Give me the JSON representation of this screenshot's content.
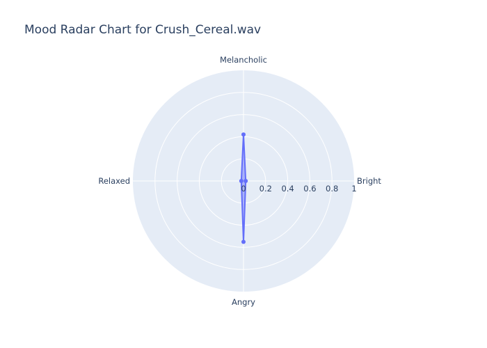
{
  "chart_data": {
    "type": "radar",
    "title": "Mood Radar Chart for Crush_Cereal.wav",
    "axes": [
      "Melancholic",
      "Bright",
      "Angry",
      "Relaxed"
    ],
    "radial_range": [
      0,
      1
    ],
    "radial_ticks": [
      "0",
      "0.2",
      "0.4",
      "0.6",
      "0.8",
      "1"
    ],
    "series": [
      {
        "values": [
          0.42,
          0.02,
          0.55,
          0.02
        ],
        "color": "#636efa"
      }
    ],
    "grid": true,
    "background_color": "#e5ecf6",
    "gridline_color": "#ffffff"
  }
}
